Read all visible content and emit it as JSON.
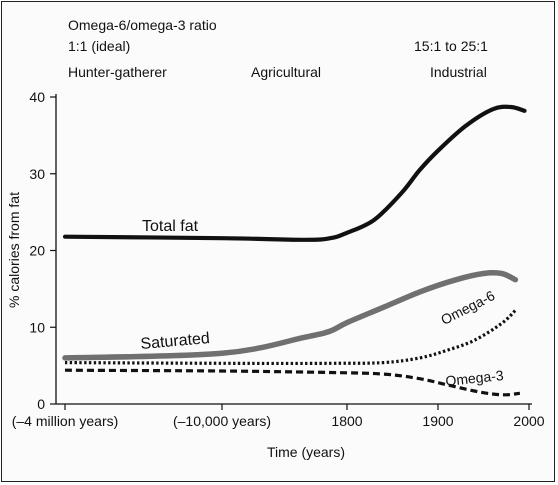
{
  "header": {
    "ratio_title": "Omega-6/omega-3 ratio",
    "ratio_ideal": "1:1 (ideal)",
    "ratio_industrial": "15:1 to 25:1",
    "era_hunter": "Hunter-gatherer",
    "era_agricultural": "Agricultural",
    "era_industrial": "Industrial"
  },
  "chart_data": {
    "type": "line",
    "title": "",
    "xlabel": "Time (years)",
    "ylabel": "% calories from fat",
    "ylim": [
      0,
      40
    ],
    "yticks": [
      0,
      10,
      20,
      30,
      40
    ],
    "xticks": [
      {
        "label": "(–4 million years)",
        "x": -4000000
      },
      {
        "label": "(–10,000 years)",
        "x": -10000
      },
      {
        "label": "1800",
        "x": 1800
      },
      {
        "label": "1900",
        "x": 1900
      },
      {
        "label": "2000",
        "x": 2000
      }
    ],
    "x_scale": "piecewise",
    "series": [
      {
        "name": "Total fat",
        "color": "#111111",
        "style": "solid",
        "points": [
          [
            -4000000,
            21.8
          ],
          [
            -10000,
            21.6
          ],
          [
            1700,
            21.4
          ],
          [
            1760,
            21.6
          ],
          [
            1800,
            22.3
          ],
          [
            1830,
            24.0
          ],
          [
            1860,
            27.5
          ],
          [
            1880,
            30.5
          ],
          [
            1900,
            33.0
          ],
          [
            1930,
            36.2
          ],
          [
            1960,
            38.4
          ],
          [
            1980,
            38.7
          ],
          [
            1995,
            38.2
          ]
        ]
      },
      {
        "name": "Saturated",
        "color": "#707070",
        "style": "solid",
        "points": [
          [
            -4000000,
            6.0
          ],
          [
            -10000,
            6.6
          ],
          [
            1700,
            8.7
          ],
          [
            1760,
            9.5
          ],
          [
            1800,
            10.6
          ],
          [
            1840,
            12.6
          ],
          [
            1880,
            14.6
          ],
          [
            1920,
            16.2
          ],
          [
            1950,
            17.0
          ],
          [
            1970,
            17.0
          ],
          [
            1985,
            16.2
          ]
        ]
      },
      {
        "name": "Omega-6",
        "color": "#111111",
        "style": "dotted",
        "points": [
          [
            -4000000,
            5.4
          ],
          [
            -10000,
            5.3
          ],
          [
            1760,
            5.3
          ],
          [
            1840,
            5.4
          ],
          [
            1880,
            6.0
          ],
          [
            1910,
            7.0
          ],
          [
            1940,
            8.3
          ],
          [
            1970,
            10.5
          ],
          [
            1985,
            12.2
          ]
        ]
      },
      {
        "name": "Omega-3",
        "color": "#111111",
        "style": "dashed",
        "points": [
          [
            -4000000,
            4.4
          ],
          [
            -10000,
            4.3
          ],
          [
            1760,
            4.1
          ],
          [
            1840,
            3.9
          ],
          [
            1880,
            3.3
          ],
          [
            1910,
            2.5
          ],
          [
            1940,
            1.7
          ],
          [
            1960,
            1.3
          ],
          [
            1975,
            1.2
          ],
          [
            1990,
            1.4
          ]
        ]
      }
    ],
    "annotations": [
      {
        "text": "Total fat",
        "series": "Total fat"
      },
      {
        "text": "Saturated",
        "series": "Saturated"
      },
      {
        "text": "Omega-6",
        "series": "Omega-6"
      },
      {
        "text": "Omega-3",
        "series": "Omega-3"
      }
    ]
  }
}
